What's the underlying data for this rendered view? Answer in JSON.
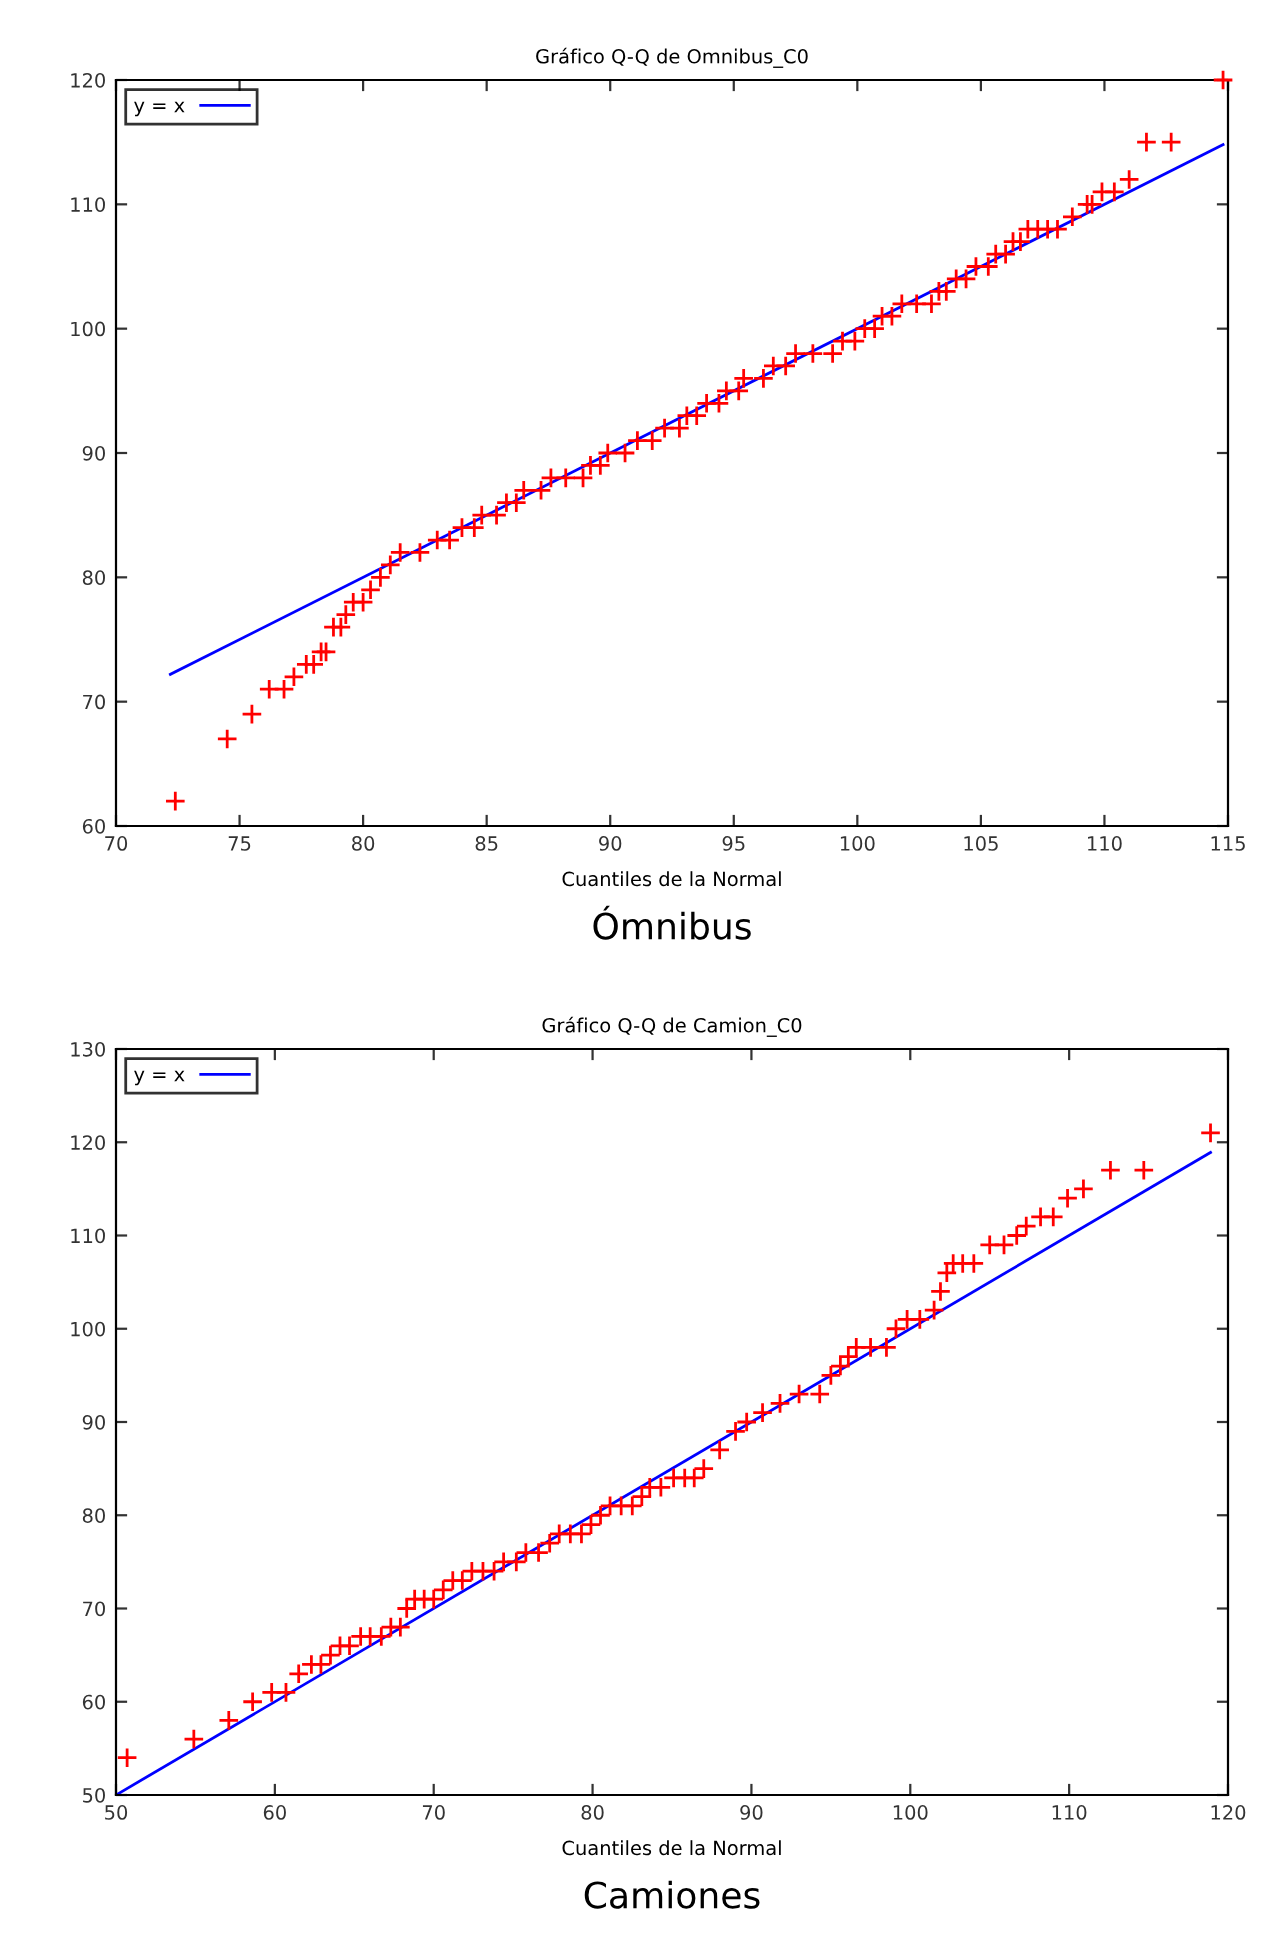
{
  "chart_data": [
    {
      "type": "scatter",
      "title": "Gráfico Q-Q de Omnibus_C0",
      "xlabel": "Cuantiles de la Normal",
      "annotations": [
        "Ómnibus"
      ],
      "xlim": [
        70,
        115
      ],
      "ylim": [
        60,
        120
      ],
      "xticks": [
        70,
        75,
        80,
        85,
        90,
        95,
        100,
        105,
        110,
        115
      ],
      "yticks": [
        60,
        70,
        80,
        90,
        100,
        110,
        120
      ],
      "grid": false,
      "legend": "top left",
      "series": [
        {
          "color": "#ff0000",
          "marker": "cross",
          "x": [
            72.4,
            74.5,
            75.5,
            76.2,
            76.8,
            77.2,
            77.7,
            78.0,
            78.3,
            78.5,
            78.8,
            79.1,
            79.3,
            79.6,
            80.0,
            80.3,
            80.7,
            81.1,
            81.5,
            82.3,
            83,
            83.5,
            84,
            84.5,
            84.8,
            85.4,
            85.8,
            86.2,
            86.5,
            87.2,
            87.6,
            88.2,
            88.9,
            89.2,
            89.6,
            89.9,
            90.6,
            91.1,
            91.7,
            92.2,
            92.8,
            93.1,
            93.5,
            93.9,
            94.4,
            94.7,
            95.2,
            95.4,
            96.2,
            96.6,
            97.1,
            97.5,
            98.2,
            99,
            99.4,
            99.9,
            100.3,
            100.7,
            101,
            101.4,
            101.8,
            102.4,
            103,
            103.3,
            103.6,
            104,
            104.4,
            104.8,
            105.3,
            105.6,
            106,
            106.3,
            106.6,
            106.9,
            107.3,
            107.7,
            108.1,
            108.7,
            109.3,
            109.5,
            109.9,
            110.4,
            111.0,
            111.7,
            112.7,
            114.8
          ],
          "values": [
            62,
            67,
            69,
            71,
            71,
            72,
            73,
            73,
            74,
            74,
            76,
            76,
            77,
            78,
            78,
            79,
            80,
            81,
            82,
            82,
            83,
            83,
            84,
            84,
            85,
            85,
            86,
            86,
            87,
            87,
            88,
            88,
            88,
            89,
            89,
            90,
            90,
            91,
            91,
            92,
            92,
            93,
            93,
            94,
            94,
            95,
            95,
            96,
            96,
            97,
            97,
            98,
            98,
            98,
            99,
            99,
            100,
            100,
            101,
            101,
            102,
            102,
            102,
            103,
            103,
            104,
            104,
            105,
            105,
            106,
            106,
            107,
            107,
            108,
            108,
            108,
            108,
            109,
            110,
            110,
            111,
            111,
            112,
            115,
            115,
            120
          ]
        },
        {
          "type": "line",
          "name": "y = x",
          "color": "#0000ff",
          "marker": "none",
          "x": [
            72.2,
            114.8
          ],
          "values": [
            72.2,
            114.8
          ]
        }
      ]
    },
    {
      "type": "scatter",
      "title": "Gráfico Q-Q de Camion_C0",
      "xlabel": "Cuantiles de la Normal",
      "annotations": [
        "Camiones"
      ],
      "xlim": [
        50,
        120
      ],
      "ylim": [
        50,
        130
      ],
      "xticks": [
        50,
        60,
        70,
        80,
        90,
        100,
        110,
        120
      ],
      "yticks": [
        50,
        60,
        70,
        80,
        90,
        100,
        110,
        120,
        130
      ],
      "grid": false,
      "legend": "top left",
      "series": [
        {
          "color": "#ff0000",
          "marker": "cross",
          "x": [
            50.7,
            54.9,
            57.1,
            58.6,
            59.8,
            60.7,
            61.5,
            62.3,
            62.9,
            63.5,
            64.1,
            64.7,
            65.4,
            66.0,
            66.7,
            67.3,
            67.9,
            68.3,
            68.8,
            69.4,
            70,
            70.6,
            71.2,
            71.8,
            72.4,
            73.1,
            73.8,
            74.4,
            75.2,
            75.8,
            76.6,
            77.3,
            77.9,
            78.6,
            79.3,
            79.9,
            80.5,
            81.1,
            81.8,
            82.5,
            83.1,
            83.6,
            84.3,
            85.1,
            85.8,
            86.4,
            87.0,
            88.0,
            89.0,
            89.7,
            90.7,
            91.8,
            93,
            94.3,
            95.0,
            95.6,
            96.1,
            96.6,
            97.5,
            98.5,
            99.1,
            99.8,
            100.6,
            101.5,
            101.9,
            102.3,
            102.7,
            103.3,
            104.0,
            105.0,
            105.9,
            106.7,
            107.3,
            108.2,
            109.0,
            109.9,
            110.9,
            112.6,
            114.7,
            118.9
          ],
          "values": [
            54,
            56,
            58,
            60,
            61,
            61,
            63,
            64,
            64,
            65,
            66,
            66,
            67,
            67,
            67,
            68,
            68,
            70,
            71,
            71,
            71,
            72,
            73,
            73,
            74,
            74,
            74,
            75,
            75,
            76,
            76,
            77,
            78,
            78,
            78,
            79,
            80,
            81,
            81,
            81,
            82,
            83,
            83,
            84,
            84,
            84,
            85,
            87,
            89,
            90,
            91,
            92,
            93,
            93,
            95,
            96,
            97,
            98,
            98,
            98,
            100,
            101,
            101,
            102,
            104,
            106,
            107,
            107,
            107,
            109,
            109,
            110,
            111,
            112,
            112,
            114,
            115,
            117,
            117,
            121
          ]
        },
        {
          "type": "line",
          "name": "y = x",
          "color": "#0000ff",
          "marker": "none",
          "x": [
            50,
            118.9
          ],
          "values": [
            50,
            118.9
          ]
        }
      ]
    }
  ]
}
